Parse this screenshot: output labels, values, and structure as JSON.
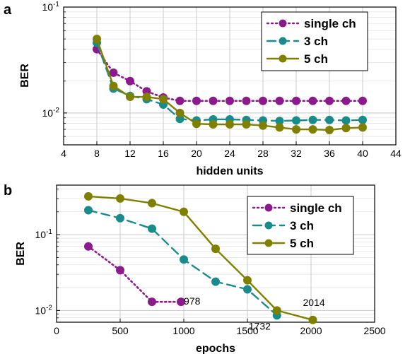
{
  "chart_data": [
    {
      "panel": "a",
      "type": "line",
      "xlabel": "hidden units",
      "ylabel": "BER",
      "xlim": [
        4,
        44
      ],
      "ylim": [
        0.005,
        0.1
      ],
      "yscale": "log",
      "xticks": [
        4,
        8,
        12,
        16,
        20,
        24,
        28,
        32,
        36,
        40,
        44
      ],
      "yticks": [
        0.01,
        0.1
      ],
      "yticklabels": [
        "10⁻²",
        "10⁻¹"
      ],
      "grid": true,
      "legend_position": "top-right",
      "series": [
        {
          "name": "single ch",
          "color": "#8B1A8B",
          "style": "dotted",
          "x": [
            8,
            10,
            12,
            14,
            16,
            18,
            20,
            22,
            24,
            26,
            28,
            30,
            32,
            34,
            36,
            38,
            40
          ],
          "y": [
            0.04,
            0.024,
            0.02,
            0.016,
            0.014,
            0.013,
            0.013,
            0.013,
            0.013,
            0.013,
            0.013,
            0.013,
            0.013,
            0.013,
            0.013,
            0.013,
            0.013
          ]
        },
        {
          "name": "3 ch",
          "color": "#1A8B8B",
          "style": "dashed",
          "x": [
            8,
            10,
            12,
            14,
            16,
            18,
            20,
            22,
            24,
            26,
            28,
            30,
            32,
            34,
            36,
            38,
            40
          ],
          "y": [
            0.046,
            0.017,
            0.0145,
            0.0135,
            0.012,
            0.0088,
            0.0085,
            0.0087,
            0.0087,
            0.0086,
            0.0085,
            0.0084,
            0.0085,
            0.0086,
            0.0086,
            0.0085,
            0.0086
          ]
        },
        {
          "name": "5 ch",
          "color": "#808000",
          "style": "solid",
          "x": [
            8,
            10,
            12,
            14,
            16,
            18,
            20,
            22,
            24,
            26,
            28,
            30,
            32,
            34,
            36,
            38,
            40
          ],
          "y": [
            0.05,
            0.018,
            0.0142,
            0.0142,
            0.0135,
            0.01,
            0.0079,
            0.0078,
            0.0078,
            0.0078,
            0.0076,
            0.0073,
            0.007,
            0.007,
            0.0069,
            0.0072,
            0.0073
          ]
        }
      ]
    },
    {
      "panel": "b",
      "type": "line",
      "xlabel": "epochs",
      "ylabel": "BER",
      "xlim": [
        0,
        2500
      ],
      "ylim": [
        0.007,
        0.45
      ],
      "yscale": "log",
      "xticks": [
        0,
        500,
        1000,
        1500,
        2000,
        2500
      ],
      "yticks": [
        0.01,
        0.1
      ],
      "yticklabels": [
        "10⁻²",
        "10⁻¹"
      ],
      "grid": true,
      "legend_position": "top-right",
      "annotations": [
        "978",
        "1732",
        "2014"
      ],
      "series": [
        {
          "name": "single ch",
          "color": "#8B1A8B",
          "style": "dotted",
          "x": [
            250,
            500,
            750,
            978
          ],
          "y": [
            0.07,
            0.034,
            0.013,
            0.013
          ]
        },
        {
          "name": "3 ch",
          "color": "#1A8B8B",
          "style": "dashed",
          "x": [
            250,
            500,
            750,
            1000,
            1250,
            1500,
            1732
          ],
          "y": [
            0.21,
            0.165,
            0.12,
            0.047,
            0.024,
            0.019,
            0.0086
          ]
        },
        {
          "name": "5 ch",
          "color": "#808000",
          "style": "solid",
          "x": [
            250,
            500,
            750,
            1000,
            1250,
            1500,
            1732,
            2014
          ],
          "y": [
            0.32,
            0.3,
            0.26,
            0.2,
            0.065,
            0.025,
            0.01,
            0.0075
          ]
        }
      ]
    }
  ]
}
